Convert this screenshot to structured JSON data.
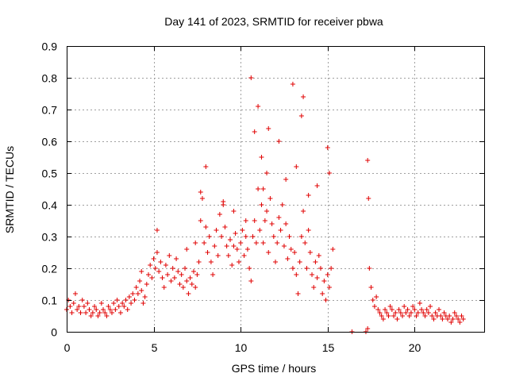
{
  "chart_data": {
    "type": "scatter",
    "title": "Day 141 of 2023, SRMTID for receiver pbwa",
    "xlabel": "GPS time / hours",
    "ylabel": "SRMTID / TECUs",
    "xlim": [
      0,
      24
    ],
    "ylim": [
      0,
      0.9
    ],
    "xticks": [
      0,
      5,
      10,
      15,
      20
    ],
    "xtick_labels": [
      "0",
      "5",
      "10",
      "15",
      "20"
    ],
    "yticks": [
      0,
      0.1,
      0.2,
      0.3,
      0.4,
      0.5,
      0.6,
      0.7,
      0.8,
      0.9
    ],
    "ytick_labels": [
      "0",
      "0.1",
      "0.2",
      "0.3",
      "0.4",
      "0.5",
      "0.6",
      "0.7",
      "0.8",
      "0.9"
    ],
    "grid": true,
    "marker": "+",
    "color": "#e00000",
    "series": [
      {
        "name": "SRMTID",
        "x": [
          0.0,
          0.1,
          0.2,
          0.3,
          0.4,
          0.5,
          0.6,
          0.7,
          0.8,
          0.9,
          1.0,
          1.1,
          1.2,
          1.3,
          1.4,
          1.5,
          1.6,
          1.7,
          1.8,
          1.9,
          2.0,
          2.1,
          2.2,
          2.3,
          2.4,
          2.5,
          2.6,
          2.7,
          2.8,
          2.9,
          3.0,
          3.1,
          3.2,
          3.3,
          3.4,
          3.5,
          3.6,
          3.7,
          3.8,
          3.9,
          4.0,
          4.1,
          4.2,
          4.3,
          4.4,
          4.5,
          4.6,
          4.7,
          4.8,
          4.9,
          5.0,
          5.1,
          5.2,
          5.3,
          5.4,
          5.5,
          5.6,
          5.7,
          5.8,
          5.9,
          6.0,
          6.1,
          6.2,
          6.3,
          6.4,
          6.5,
          6.6,
          6.7,
          6.8,
          6.9,
          7.0,
          7.1,
          7.2,
          7.3,
          7.4,
          7.5,
          7.6,
          7.7,
          7.8,
          7.9,
          8.0,
          8.1,
          8.2,
          8.3,
          8.4,
          8.5,
          8.6,
          8.7,
          8.8,
          8.9,
          9.0,
          9.1,
          9.2,
          9.3,
          9.4,
          9.5,
          9.6,
          9.7,
          9.8,
          9.9,
          10.0,
          10.1,
          10.2,
          10.3,
          10.4,
          10.5,
          10.6,
          10.7,
          10.8,
          10.9,
          11.0,
          11.1,
          11.2,
          11.3,
          11.4,
          11.5,
          11.6,
          11.7,
          11.8,
          11.9,
          12.0,
          12.1,
          12.2,
          12.3,
          12.4,
          12.5,
          12.6,
          12.7,
          12.8,
          12.9,
          13.0,
          13.1,
          13.2,
          13.3,
          13.4,
          13.5,
          13.6,
          13.7,
          13.8,
          13.9,
          14.0,
          14.1,
          14.2,
          14.3,
          14.4,
          14.5,
          14.6,
          14.7,
          14.8,
          14.9,
          15.0,
          15.1,
          15.2,
          15.3,
          17.2,
          17.3,
          17.4,
          17.5,
          17.6,
          17.7,
          17.8,
          17.9,
          18.0,
          18.1,
          18.2,
          18.3,
          18.4,
          18.5,
          18.6,
          18.7,
          18.8,
          18.9,
          19.0,
          19.1,
          19.2,
          19.3,
          19.4,
          19.5,
          19.6,
          19.7,
          19.8,
          19.9,
          20.0,
          20.1,
          20.2,
          20.3,
          20.4,
          20.5,
          20.6,
          20.7,
          20.8,
          20.9,
          21.0,
          21.1,
          21.2,
          21.3,
          21.4,
          21.5,
          21.6,
          21.7,
          21.8,
          21.9,
          22.0,
          22.1,
          22.2,
          22.3,
          22.4,
          22.5,
          22.6,
          22.7,
          22.8,
          10.6,
          11.0,
          11.6,
          13.6,
          15.0,
          17.3,
          17.35,
          8.0,
          13.0,
          12.2,
          11.2,
          15.1,
          13.5,
          10.8,
          11.3,
          9.0,
          9.6,
          14.4,
          7.7,
          11.5,
          13.9,
          10.3,
          12.6,
          5.2,
          4.3,
          6.9,
          7.4,
          13.2,
          16.4
        ],
        "y": [
          0.07,
          0.1,
          0.08,
          0.06,
          0.09,
          0.12,
          0.07,
          0.08,
          0.06,
          0.1,
          0.08,
          0.06,
          0.09,
          0.07,
          0.05,
          0.06,
          0.08,
          0.07,
          0.05,
          0.06,
          0.09,
          0.07,
          0.06,
          0.05,
          0.08,
          0.07,
          0.06,
          0.09,
          0.07,
          0.1,
          0.08,
          0.06,
          0.09,
          0.08,
          0.1,
          0.07,
          0.11,
          0.09,
          0.12,
          0.1,
          0.14,
          0.12,
          0.16,
          0.13,
          0.09,
          0.11,
          0.15,
          0.18,
          0.21,
          0.17,
          0.23,
          0.2,
          0.25,
          0.19,
          0.22,
          0.17,
          0.14,
          0.21,
          0.18,
          0.24,
          0.16,
          0.2,
          0.17,
          0.23,
          0.19,
          0.15,
          0.18,
          0.14,
          0.2,
          0.16,
          0.12,
          0.17,
          0.15,
          0.19,
          0.14,
          0.18,
          0.22,
          0.35,
          0.42,
          0.28,
          0.33,
          0.25,
          0.3,
          0.22,
          0.18,
          0.27,
          0.32,
          0.24,
          0.37,
          0.3,
          0.4,
          0.33,
          0.27,
          0.24,
          0.29,
          0.21,
          0.27,
          0.31,
          0.26,
          0.22,
          0.28,
          0.32,
          0.24,
          0.3,
          0.26,
          0.2,
          0.16,
          0.3,
          0.35,
          0.28,
          0.45,
          0.32,
          0.4,
          0.28,
          0.35,
          0.38,
          0.25,
          0.42,
          0.34,
          0.3,
          0.22,
          0.28,
          0.36,
          0.32,
          0.4,
          0.27,
          0.34,
          0.23,
          0.3,
          0.26,
          0.2,
          0.25,
          0.18,
          0.12,
          0.22,
          0.3,
          0.38,
          0.28,
          0.2,
          0.32,
          0.25,
          0.18,
          0.14,
          0.22,
          0.17,
          0.24,
          0.2,
          0.12,
          0.16,
          0.1,
          0.18,
          0.14,
          0.2,
          0.26,
          0.0,
          0.01,
          0.2,
          0.14,
          0.1,
          0.08,
          0.11,
          0.07,
          0.06,
          0.05,
          0.04,
          0.07,
          0.06,
          0.05,
          0.08,
          0.07,
          0.05,
          0.06,
          0.04,
          0.07,
          0.06,
          0.05,
          0.08,
          0.06,
          0.07,
          0.05,
          0.06,
          0.08,
          0.07,
          0.05,
          0.06,
          0.09,
          0.07,
          0.06,
          0.05,
          0.07,
          0.06,
          0.08,
          0.05,
          0.04,
          0.06,
          0.05,
          0.07,
          0.05,
          0.04,
          0.06,
          0.05,
          0.04,
          0.05,
          0.03,
          0.04,
          0.06,
          0.05,
          0.04,
          0.03,
          0.05,
          0.04,
          0.8,
          0.71,
          0.64,
          0.74,
          0.58,
          0.54,
          0.42,
          0.52,
          0.78,
          0.6,
          0.55,
          0.5,
          0.68,
          0.63,
          0.45,
          0.41,
          0.38,
          0.46,
          0.44,
          0.5,
          0.43,
          0.35,
          0.48,
          0.32,
          0.19,
          0.26,
          0.28,
          0.52,
          0.0
        ]
      }
    ]
  }
}
